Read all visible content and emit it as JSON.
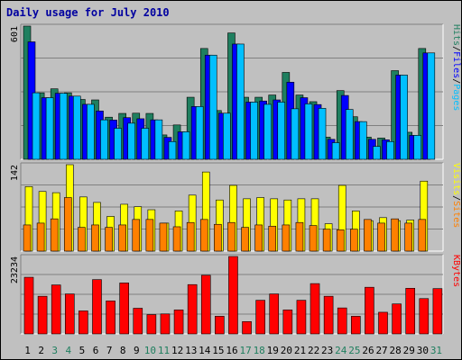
{
  "title": "Daily usage for July 2010",
  "chart_data": {
    "type": "bar",
    "title": "Daily usage for July 2010",
    "categories": [
      "1",
      "2",
      "3",
      "4",
      "5",
      "6",
      "7",
      "8",
      "9",
      "10",
      "11",
      "12",
      "13",
      "14",
      "15",
      "16",
      "17",
      "18",
      "19",
      "20",
      "21",
      "22",
      "23",
      "24",
      "25",
      "26",
      "27",
      "28",
      "29",
      "30",
      "31"
    ],
    "weekend_days": [
      "3",
      "4",
      "10",
      "11",
      "17",
      "18",
      "24",
      "25",
      "31"
    ],
    "panels": [
      {
        "ymax_label": "601",
        "ymax": 601,
        "side_label_parts": [
          "Pages",
          "Files",
          "Hits"
        ],
        "series": [
          {
            "key": "hits",
            "color": "#1f7f5f",
            "values": [
              601,
              300,
              318,
              300,
              270,
              268,
              190,
              207,
              208,
              207,
              110,
              155,
              280,
              500,
              220,
              570,
              280,
              280,
              290,
              392,
              290,
              260,
              100,
              310,
              192,
              100,
              96,
              400,
              122,
              500,
              0
            ]
          },
          {
            "key": "files",
            "color": "#0000ff",
            "values": [
              530,
              278,
              298,
              285,
              248,
              218,
              177,
              188,
              183,
              178,
              99,
              124,
              238,
              470,
              208,
              520,
              258,
              263,
              268,
              348,
              278,
              247,
              90,
              288,
              170,
              90,
              88,
              380,
              108,
              480,
              0
            ]
          },
          {
            "key": "pages",
            "color": "#00bfff",
            "values": [
              300,
              278,
              298,
              285,
              248,
              178,
              140,
              163,
              140,
              178,
              80,
              124,
              238,
              470,
              208,
              520,
              258,
              248,
              258,
              228,
              250,
              230,
              75,
              225,
              170,
              58,
              80,
              380,
              108,
              480,
              0
            ]
          }
        ]
      },
      {
        "ymax_label": "142",
        "ymax": 142,
        "side_label_parts": [
          "Sites",
          "Visits"
        ],
        "series": [
          {
            "key": "visits",
            "color": "#ffff00",
            "values": [
              106,
              98,
              96,
              142,
              89,
              80,
              57,
              77,
              73,
              68,
              46,
              66,
              92,
              130,
              84,
              108,
              86,
              88,
              86,
              84,
              86,
              86,
              45,
              108,
              66,
              50,
              55,
              50,
              51,
              115,
              0
            ]
          },
          {
            "key": "sites",
            "color": "#ff8000",
            "values": [
              43,
              46,
              53,
              88,
              39,
              43,
              39,
              43,
              52,
              52,
              46,
              40,
              47,
              52,
              44,
              47,
              39,
              43,
              41,
              43,
              47,
              42,
              36,
              35,
              36,
              52,
              46,
              53,
              46,
              52,
              0
            ]
          }
        ]
      },
      {
        "ymax_label": "23234",
        "ymax": 23234,
        "side_label_parts": [
          "KBytes"
        ],
        "series": [
          {
            "key": "kbytes",
            "color": "#ff0000",
            "values": [
              17000,
              11300,
              14700,
              12000,
              6900,
              16300,
              9900,
              15300,
              7700,
              5800,
              6000,
              7200,
              14800,
              17600,
              5300,
              23234,
              3700,
              10100,
              12000,
              7200,
              10100,
              15100,
              11300,
              7800,
              5300,
              14000,
              6500,
              9000,
              13700,
              10600,
              13600
            ]
          }
        ]
      }
    ]
  }
}
